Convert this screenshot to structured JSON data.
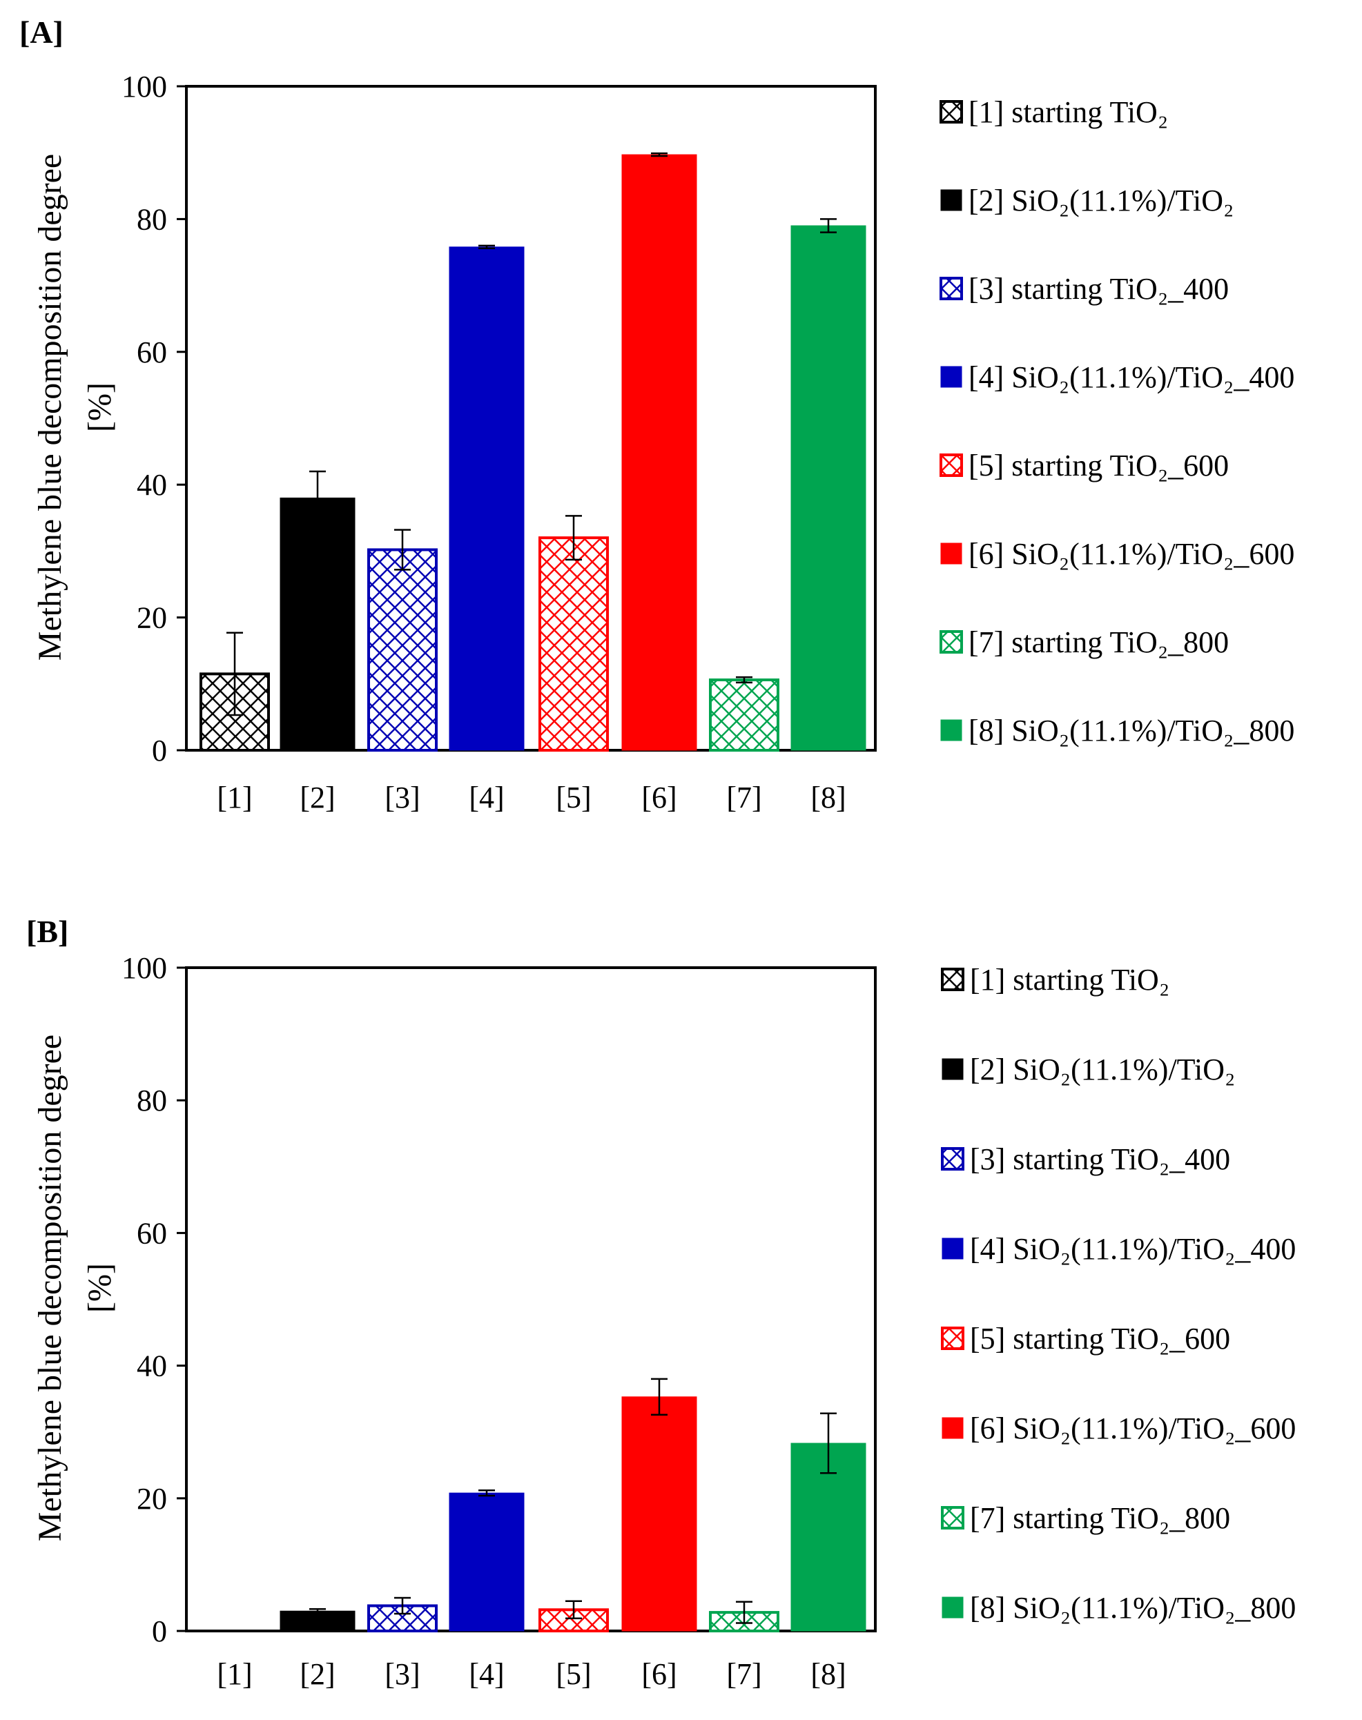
{
  "chart_data": [
    {
      "type": "bar",
      "panel": "[A]",
      "ylabel_line1": "Methylene blue decomposition degree",
      "ylabel_line2": "[%]",
      "ylim": [
        0,
        100
      ],
      "yticks": [
        "0",
        "20",
        "40",
        "60",
        "80",
        "100"
      ],
      "categories": [
        "[1]",
        "[2]",
        "[3]",
        "[4]",
        "[5]",
        "[6]",
        "[7]",
        "[8]"
      ],
      "values": [
        11.5,
        38,
        30.2,
        75.8,
        32,
        89.7,
        10.6,
        79
      ],
      "errors": [
        6.2,
        4,
        3,
        0.2,
        3.3,
        0.2,
        0.4,
        1
      ]
    },
    {
      "type": "bar",
      "panel": "[B]",
      "ylabel_line1": "Methylene blue decomposition degree",
      "ylabel_line2": "[%]",
      "ylim": [
        0,
        100
      ],
      "yticks": [
        "0",
        "20",
        "40",
        "60",
        "80",
        "100"
      ],
      "categories": [
        "[1]",
        "[2]",
        "[3]",
        "[4]",
        "[5]",
        "[6]",
        "[7]",
        "[8]"
      ],
      "values": [
        0,
        3,
        3.8,
        20.8,
        3.2,
        35.3,
        2.8,
        28.3
      ],
      "errors": [
        0,
        0.3,
        1.2,
        0.4,
        1.3,
        2.7,
        1.6,
        4.5
      ]
    }
  ],
  "legend": [
    {
      "label": "[1] starting  TiO₂",
      "color": "#000000",
      "pattern": "crosshatch"
    },
    {
      "label": "[2]  SiO₂(11.1%)/TiO₂",
      "color": "#000000",
      "pattern": "solid"
    },
    {
      "label": "[3]  starting  TiO₂_400",
      "color": "#0000b4",
      "pattern": "crosshatch"
    },
    {
      "label": "[4]  SiO₂(11.1%)/TiO₂_400",
      "color": "#0000c0",
      "pattern": "solid"
    },
    {
      "label": "[5]  starting  TiO₂_600",
      "color": "#ff0000",
      "pattern": "crosshatch"
    },
    {
      "label": "[6]  SiO₂(11.1%)/TiO₂_600",
      "color": "#ff0000",
      "pattern": "solid"
    },
    {
      "label": "[7]  starting  TiO₂_800",
      "color": "#00a550",
      "pattern": "crosshatch"
    },
    {
      "label": "[8]  SiO₂(11.1%)/TiO₂_800",
      "color": "#00a550",
      "pattern": "solid"
    }
  ]
}
